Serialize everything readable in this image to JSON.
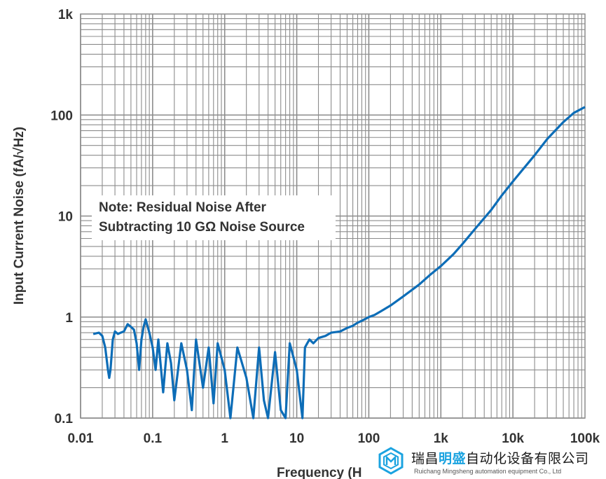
{
  "chart_data": {
    "type": "line",
    "xlabel": "Frequency (Hz)",
    "xlabel_visible": "Frequency (H",
    "ylabel": "Input Current Noise (fA/√Hz)",
    "x_scale": "log",
    "y_scale": "log",
    "xlim": [
      0.01,
      100000
    ],
    "ylim": [
      0.1,
      1000
    ],
    "x_ticks": [
      "0.01",
      "0.1",
      "1",
      "10",
      "100",
      "1k",
      "10k",
      "100k"
    ],
    "y_ticks": [
      "0.1",
      "1",
      "10",
      "100",
      "1k"
    ],
    "grid": true,
    "line_color": "#0d6db7",
    "annotation": {
      "line1": "Note: Residual Noise After",
      "line2": "Subtracting 10 GΩ Noise Source",
      "placement": "left-middle"
    },
    "series": [
      {
        "x": [
          0.015,
          0.018,
          0.02,
          0.022,
          0.024,
          0.025,
          0.026,
          0.028,
          0.03,
          0.033,
          0.036,
          0.04,
          0.045,
          0.05,
          0.055,
          0.06,
          0.065,
          0.07,
          0.075,
          0.08,
          0.09,
          0.1,
          0.11,
          0.12,
          0.14,
          0.16,
          0.18,
          0.2,
          0.25,
          0.3,
          0.35,
          0.4,
          0.5,
          0.6,
          0.7,
          0.8,
          1,
          1.2,
          1.5,
          2,
          2.5,
          3,
          3.5,
          4,
          5,
          6,
          7,
          8,
          10,
          12,
          13,
          14,
          15,
          17,
          20,
          25,
          30,
          40,
          50,
          60,
          70,
          80,
          100,
          120,
          150,
          200,
          300,
          500,
          700,
          1000,
          1500,
          2000,
          3000,
          5000,
          7000,
          10000,
          20000,
          30000,
          50000,
          70000,
          100000
        ],
        "y": [
          0.68,
          0.7,
          0.65,
          0.5,
          0.3,
          0.25,
          0.3,
          0.6,
          0.72,
          0.68,
          0.7,
          0.72,
          0.85,
          0.8,
          0.75,
          0.55,
          0.3,
          0.6,
          0.8,
          0.95,
          0.7,
          0.5,
          0.3,
          0.6,
          0.18,
          0.55,
          0.35,
          0.15,
          0.55,
          0.3,
          0.12,
          0.6,
          0.2,
          0.5,
          0.14,
          0.55,
          0.3,
          0.1,
          0.5,
          0.25,
          0.1,
          0.5,
          0.15,
          0.1,
          0.45,
          0.12,
          0.1,
          0.55,
          0.3,
          0.1,
          0.5,
          0.55,
          0.6,
          0.55,
          0.62,
          0.65,
          0.7,
          0.72,
          0.78,
          0.82,
          0.88,
          0.92,
          1.0,
          1.05,
          1.15,
          1.3,
          1.6,
          2.1,
          2.6,
          3.2,
          4.2,
          5.3,
          7.5,
          11.5,
          16,
          22,
          40,
          58,
          85,
          105,
          120
        ]
      }
    ]
  },
  "logo": {
    "title_pre": "瑞昌",
    "title_highlight": "明盛",
    "title_post": "自动化设备有限公司",
    "subtitle": "Ruichang Mingsheng automation equipment Co., Ltd"
  }
}
